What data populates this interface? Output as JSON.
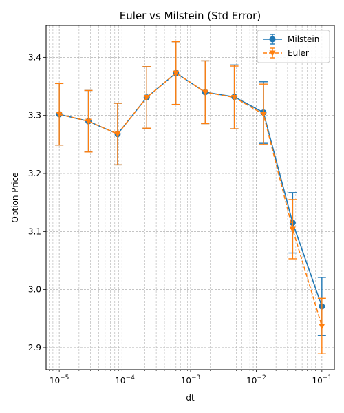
{
  "chart_data": {
    "type": "line",
    "title": "Euler vs Milstein (Std Error)",
    "xlabel": "dt",
    "ylabel": "Option Price",
    "xscale": "log",
    "xlim": [
      6.3e-06,
      0.155
    ],
    "ylim": [
      2.862,
      3.455
    ],
    "grid": "both",
    "legend_position": "upper right",
    "x": [
      1e-05,
      2.78e-05,
      7.74e-05,
      0.000215,
      0.000599,
      0.00167,
      0.00464,
      0.0129,
      0.0359,
      0.1
    ],
    "x_ticks": [
      {
        "value": 1e-05,
        "label": "10^-5"
      },
      {
        "value": 0.0001,
        "label": "10^-4"
      },
      {
        "value": 0.001,
        "label": "10^-3"
      },
      {
        "value": 0.01,
        "label": "10^-2"
      },
      {
        "value": 0.1,
        "label": "10^-1"
      }
    ],
    "y_ticks": [
      2.9,
      3.0,
      3.1,
      3.2,
      3.3,
      3.4
    ],
    "series": [
      {
        "name": "Milstein",
        "color": "#1f77b4",
        "marker": "circle",
        "linestyle": "solid",
        "values": [
          3.302,
          3.29,
          3.268,
          3.331,
          3.373,
          3.34,
          3.332,
          3.305,
          3.115,
          2.971
        ],
        "errors": [
          0.053,
          0.053,
          0.053,
          0.053,
          0.054,
          0.054,
          0.055,
          0.053,
          0.052,
          0.05
        ]
      },
      {
        "name": "Euler",
        "color": "#ff7f0e",
        "marker": "triangle-down",
        "linestyle": "dashed",
        "values": [
          3.302,
          3.29,
          3.268,
          3.331,
          3.373,
          3.34,
          3.331,
          3.302,
          3.104,
          2.937
        ],
        "errors": [
          0.053,
          0.053,
          0.053,
          0.053,
          0.054,
          0.054,
          0.054,
          0.052,
          0.051,
          0.048
        ]
      }
    ]
  }
}
